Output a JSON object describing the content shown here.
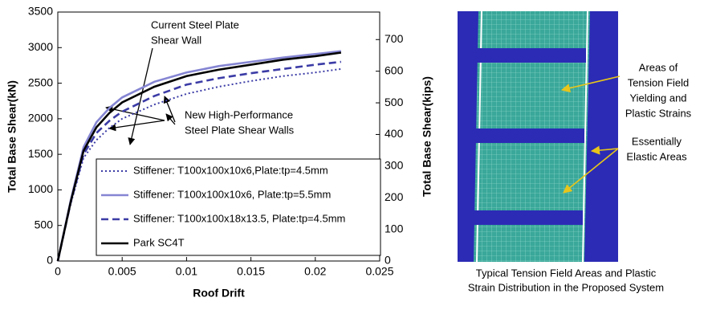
{
  "chart_data": {
    "type": "line",
    "xlabel": "Roof Drift",
    "ylabel": "Total Base Shear(kN)",
    "y2label": "Total Base Shear(kips)",
    "x": [
      0,
      0.001,
      0.002,
      0.003,
      0.004,
      0.005,
      0.0075,
      0.01,
      0.0125,
      0.015,
      0.0175,
      0.02,
      0.022
    ],
    "series": [
      {
        "name": "Stiffener: T100x100x10x6,Plate:tp=4.5mm",
        "color": "#3b3ba6",
        "dash": "dotted",
        "values": [
          0,
          800,
          1450,
          1700,
          1870,
          2000,
          2200,
          2350,
          2450,
          2530,
          2600,
          2650,
          2700
        ]
      },
      {
        "name": "Stiffener: T100x100x10x6, Plate:tp=5.5mm",
        "color": "#8585d3",
        "dash": "solid",
        "values": [
          0,
          850,
          1600,
          1950,
          2150,
          2300,
          2520,
          2650,
          2740,
          2800,
          2860,
          2910,
          2950
        ]
      },
      {
        "name": "Stiffener: T100x100x18x13.5, Plate:tp=4.5mm",
        "color": "#3b3ba6",
        "dash": "dashed",
        "values": [
          0,
          820,
          1500,
          1800,
          1970,
          2100,
          2320,
          2480,
          2570,
          2640,
          2700,
          2760,
          2800
        ]
      },
      {
        "name": "Park SC4T",
        "color": "#000000",
        "dash": "solid",
        "values": [
          0,
          830,
          1550,
          1880,
          2080,
          2230,
          2450,
          2600,
          2690,
          2760,
          2830,
          2880,
          2930
        ]
      }
    ],
    "xlim": [
      0,
      0.025
    ],
    "xticks": [
      0,
      0.005,
      0.01,
      0.015,
      0.02,
      0.025
    ],
    "ylim": [
      0,
      3500
    ],
    "yticks": [
      0,
      500,
      1000,
      1500,
      2000,
      2500,
      3000,
      3500
    ],
    "y2lim": [
      0,
      787
    ],
    "y2ticks": [
      0,
      100,
      200,
      300,
      400,
      500,
      600,
      700
    ],
    "annotations": [
      [
        "Current Steel Plate",
        "Shear Wall"
      ],
      [
        "New High-Performance",
        "Steel Plate Shear Walls"
      ]
    ]
  },
  "figure": {
    "label_tension": [
      "Areas of",
      "Tension Field",
      "Yielding and",
      "Plastic Strains"
    ],
    "label_elastic": [
      "Essentially",
      "Elastic Areas"
    ],
    "caption": [
      "Typical Tension Field Areas and Plastic",
      "Strain Distribution in the Proposed System"
    ]
  }
}
